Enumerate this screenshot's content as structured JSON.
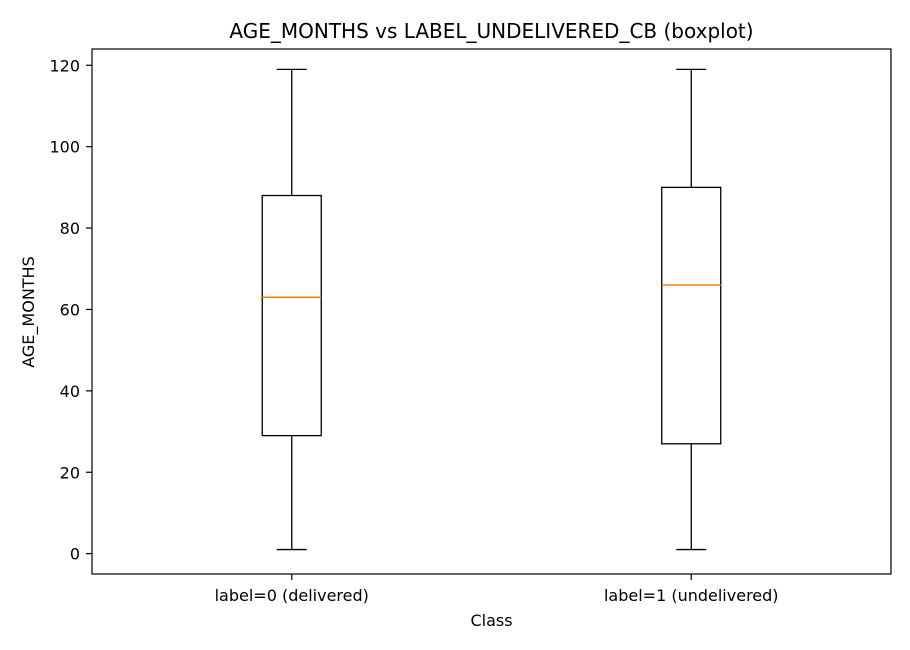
{
  "chart_data": {
    "type": "boxplot",
    "title": "AGE_MONTHS vs LABEL_UNDELIVERED_CB (boxplot)",
    "xlabel": "Class",
    "ylabel": "AGE_MONTHS",
    "ylim": [
      -5,
      124
    ],
    "yticks": [
      0,
      20,
      40,
      60,
      80,
      100,
      120
    ],
    "grid": false,
    "categories": [
      "label=0 (delivered)",
      "label=1 (undelivered)"
    ],
    "boxes": [
      {
        "category": "label=0 (delivered)",
        "whisker_low": 1,
        "q1": 29,
        "median": 63,
        "q3": 88,
        "whisker_high": 119
      },
      {
        "category": "label=1 (undelivered)",
        "whisker_low": 1,
        "q1": 27,
        "median": 66,
        "q3": 90,
        "whisker_high": 119
      }
    ],
    "colors": {
      "box": "#000000",
      "median": "#ff7f0e",
      "axes": "#000000"
    }
  }
}
